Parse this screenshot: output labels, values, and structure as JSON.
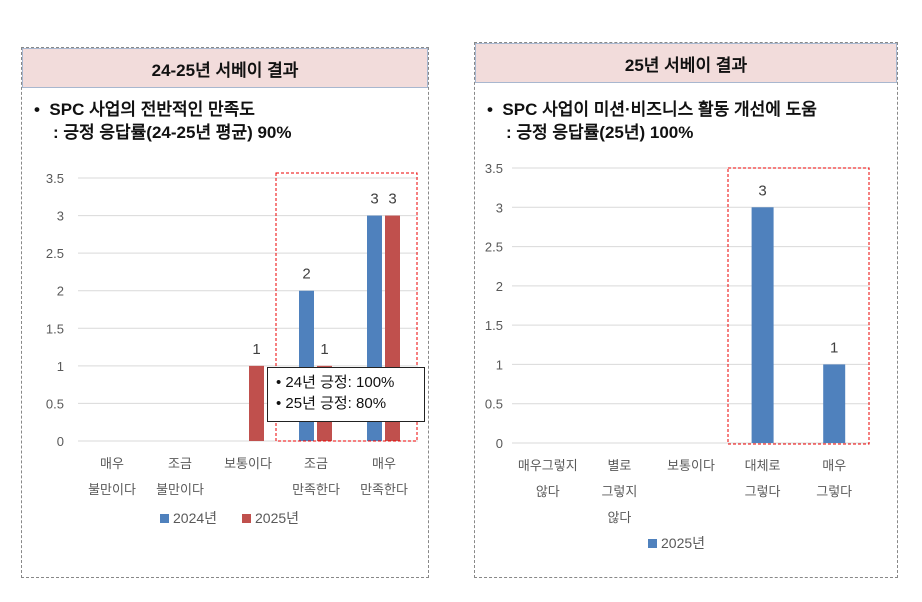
{
  "panels": [
    {
      "title": "24-25년 서베이 결과",
      "line1": "SPC 사업의 전반적인 만족도",
      "line2": ": 긍정 응답률(24-25년 평균) 90%"
    },
    {
      "title": "25년 서베이 결과",
      "line1": "SPC 사업이 미션·비즈니스 활동 개선에 도움",
      "line2": ": 긍정 응답률(25년) 100%"
    }
  ],
  "callout": {
    "items": [
      "24년 긍정: 100%",
      "25년 긍정: 80%"
    ]
  },
  "chart_data": [
    {
      "type": "bar",
      "categories": [
        [
          "매우",
          "불만이다"
        ],
        [
          "조금",
          "불만이다"
        ],
        [
          "보통이다"
        ],
        [
          "조금",
          "만족한다"
        ],
        [
          "매우",
          "만족한다"
        ]
      ],
      "series": [
        {
          "name": "2024년",
          "color": "#4f81bd",
          "values": [
            0,
            0,
            0,
            2,
            3
          ]
        },
        {
          "name": "2025년",
          "color": "#c0504d",
          "values": [
            0,
            0,
            1,
            1,
            3
          ]
        }
      ],
      "ylim": [
        0,
        3.5
      ],
      "yticks": [
        "0",
        "0.5",
        "1",
        "1.5",
        "2",
        "2.5",
        "3",
        "3.5"
      ],
      "legend": "bottom",
      "grid": true
    },
    {
      "type": "bar",
      "categories": [
        [
          "매우그렇지",
          "않다"
        ],
        [
          "별로",
          "그렇지",
          "않다"
        ],
        [
          "보통이다"
        ],
        [
          "대체로",
          "그렇다"
        ],
        [
          "매우",
          "그렇다"
        ]
      ],
      "series": [
        {
          "name": "2025년",
          "color": "#4f81bd",
          "values": [
            0,
            0,
            0,
            3,
            1
          ]
        }
      ],
      "ylim": [
        0,
        3.5
      ],
      "yticks": [
        "0",
        "0.5",
        "1",
        "1.5",
        "2",
        "2.5",
        "3",
        "3.5"
      ],
      "legend": "bottom",
      "grid": true
    }
  ]
}
